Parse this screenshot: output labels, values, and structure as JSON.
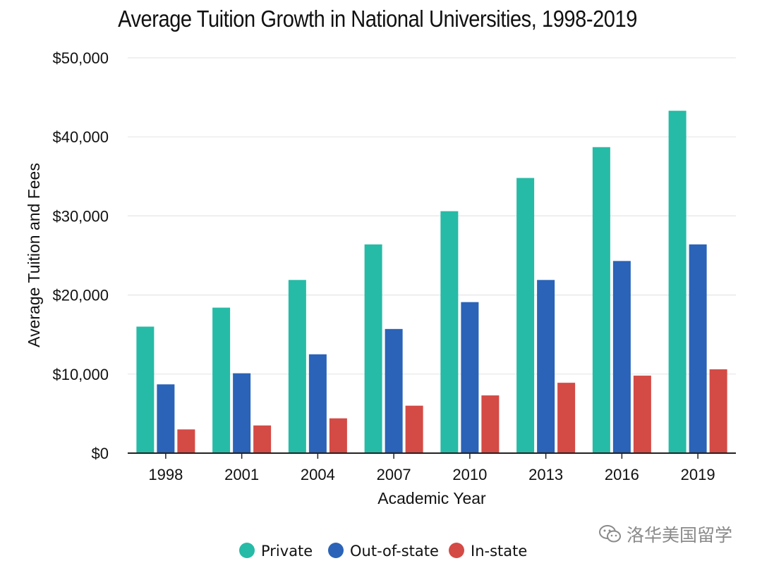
{
  "chart_data": {
    "type": "bar",
    "title": "Average Tuition Growth in National Universities, 1998-2019",
    "xlabel": "Academic Year",
    "ylabel": "Average Tuition and Fees",
    "ylim": [
      0,
      50000
    ],
    "yticks": [
      0,
      10000,
      20000,
      30000,
      40000,
      50000
    ],
    "ytick_labels": [
      "$0",
      "$10,000",
      "$20,000",
      "$30,000",
      "$40,000",
      "$50,000"
    ],
    "grid": true,
    "legend_position": "bottom",
    "categories": [
      "1998",
      "2001",
      "2004",
      "2007",
      "2010",
      "2013",
      "2016",
      "2019"
    ],
    "series": [
      {
        "name": "Private",
        "color": "#26bba6",
        "values": [
          16000,
          18400,
          21900,
          26400,
          30600,
          34800,
          38700,
          43300
        ]
      },
      {
        "name": "Out-of-state",
        "color": "#2a63b7",
        "values": [
          8700,
          10100,
          12500,
          15700,
          19100,
          21900,
          24300,
          26400
        ]
      },
      {
        "name": "In-state",
        "color": "#d44a45",
        "values": [
          3000,
          3500,
          4400,
          6000,
          7300,
          8900,
          9800,
          10600
        ]
      }
    ]
  },
  "watermark": {
    "icon": "wechat-icon",
    "text": "洛华美国留学"
  }
}
